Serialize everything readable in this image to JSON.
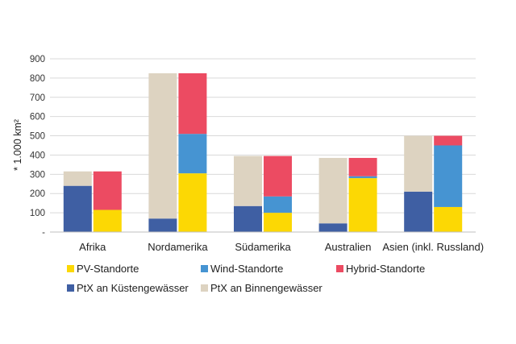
{
  "chart_data": {
    "type": "bar",
    "subtype": "paired-stacked",
    "ylabel": "* 1.000 km²",
    "ylim": [
      0,
      900
    ],
    "yticks": [
      0,
      100,
      200,
      300,
      400,
      500,
      600,
      700,
      800,
      900
    ],
    "ytick_labels": [
      "-",
      "100",
      "200",
      "300",
      "400",
      "500",
      "600",
      "700",
      "800",
      "900"
    ],
    "grid": true,
    "legend_position": "bottom",
    "categories": [
      "Afrika",
      "Nordamerika",
      "Südamerika",
      "Australien",
      "Asien (inkl. Russland)"
    ],
    "stacks": [
      {
        "position": "left",
        "series": [
          {
            "name": "PtX an Küstengewässer",
            "color": "#3f5fa3",
            "values": [
              240,
              70,
              135,
              45,
              210
            ]
          },
          {
            "name": "PtX an Binnengewässer",
            "color": "#ddd3c1",
            "values": [
              75,
              755,
              260,
              340,
              290
            ]
          }
        ]
      },
      {
        "position": "right",
        "series": [
          {
            "name": "PV-Standorte",
            "color": "#fcd804",
            "values": [
              115,
              305,
              100,
              280,
              130
            ]
          },
          {
            "name": "Wind-Standorte",
            "color": "#4694d2",
            "values": [
              0,
              205,
              85,
              10,
              320
            ]
          },
          {
            "name": "Hybrid-Standorte",
            "color": "#ec4b62",
            "values": [
              200,
              315,
              210,
              95,
              50
            ]
          }
        ]
      }
    ],
    "legend": [
      {
        "name": "PV-Standorte",
        "color": "#fcd804"
      },
      {
        "name": "Wind-Standorte",
        "color": "#4694d2"
      },
      {
        "name": "Hybrid-Standorte",
        "color": "#ec4b62"
      },
      {
        "name": "PtX an Küstengewässer",
        "color": "#3f5fa3"
      },
      {
        "name": "PtX an Binnengewässer",
        "color": "#ddd3c1"
      }
    ]
  }
}
